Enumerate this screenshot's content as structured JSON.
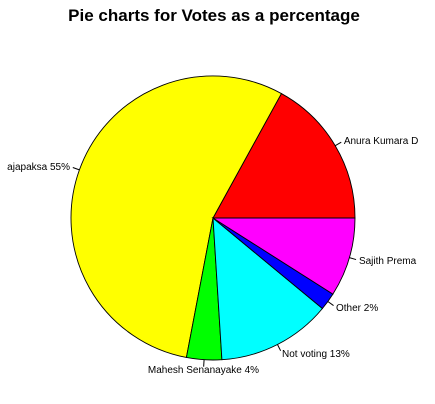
{
  "chart_data": {
    "type": "pie",
    "title": "Pie charts for Votes as a percentage",
    "slices": [
      {
        "label": "Anura Kumara D",
        "value": 17,
        "color": "#FF0000"
      },
      {
        "label": "ajapaksa 55%",
        "value": 55,
        "color": "#FFFF00"
      },
      {
        "label": "Mahesh Senanayake 4%",
        "value": 4,
        "color": "#00FF00"
      },
      {
        "label": "Not voting 13%",
        "value": 13,
        "color": "#00FFFF"
      },
      {
        "label": "Other 2%",
        "value": 2,
        "color": "#0000FF"
      },
      {
        "label": "Sajith Prema",
        "value": 9,
        "color": "#FF00FF"
      }
    ],
    "start_angle_deg": 0,
    "direction": "counterclockwise"
  }
}
